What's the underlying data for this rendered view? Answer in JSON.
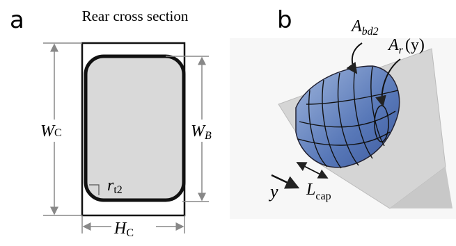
{
  "panel_a": {
    "letter": "a",
    "title": "Rear cross section",
    "width_outer": {
      "symbol": "W",
      "subscript": "C"
    },
    "width_inner": {
      "symbol": "W",
      "subscript": "B"
    },
    "corner_radius": {
      "symbol": "r",
      "subscript": "t2"
    },
    "height_outer": {
      "symbol": "H",
      "subscript": "C"
    }
  },
  "panel_b": {
    "letter": "b",
    "area_boundary": {
      "symbol": "A",
      "subscript": "bd2"
    },
    "area_radial": {
      "symbol": "A",
      "subscript": "r",
      "argument": "(y)"
    },
    "axis": {
      "symbol": "y"
    },
    "length": {
      "symbol": "L",
      "subscript": "cap"
    }
  }
}
